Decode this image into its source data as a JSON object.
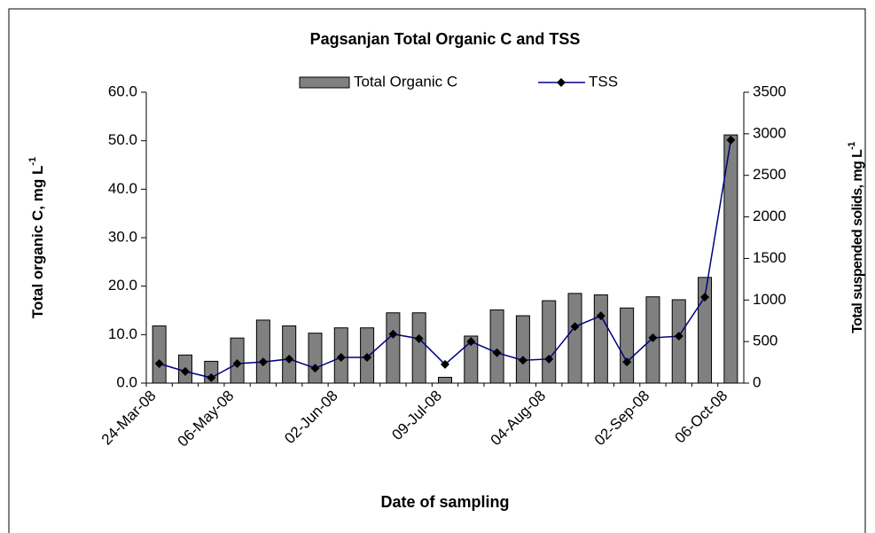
{
  "chart_data": {
    "type": "combo",
    "title": "Pagsanjan Total Organic C and TSS",
    "x_label": "Date of sampling",
    "y_label": "Total organic C, mg L",
    "y_label_sup": "-1",
    "y2_label": "Total suspended solids, mg L",
    "y2_label_sup": "-1",
    "categories": [
      "24-Mar-08",
      null,
      null,
      "06-May-08",
      null,
      null,
      null,
      "02-Jun-08",
      null,
      null,
      null,
      "09-Jul-08",
      null,
      null,
      null,
      "04-Aug-08",
      null,
      null,
      null,
      "02-Sep-08",
      null,
      null,
      "06-Oct-08"
    ],
    "series": [
      {
        "name": "Total Organic C",
        "type": "bar",
        "color": "#808080",
        "values": [
          11.8,
          5.8,
          4.5,
          9.3,
          13.0,
          11.8,
          10.3,
          11.4,
          11.4,
          14.5,
          14.5,
          1.2,
          9.7,
          15.1,
          13.9,
          17.0,
          18.5,
          18.2,
          15.5,
          17.8,
          17.2,
          21.8,
          51.2
        ]
      },
      {
        "name": "TSS",
        "type": "line",
        "color": "#000080",
        "axis": "y2",
        "values": [
          235,
          140,
          65,
          235,
          255,
          290,
          180,
          310,
          310,
          590,
          535,
          225,
          500,
          365,
          275,
          290,
          680,
          810,
          255,
          545,
          565,
          1035,
          2925
        ]
      }
    ],
    "ylim": [
      0,
      60
    ],
    "yticks": [
      {
        "value": 0,
        "label": "0.0"
      },
      {
        "value": 10,
        "label": "10.0"
      },
      {
        "value": 20,
        "label": "20.0"
      },
      {
        "value": 30,
        "label": "30.0"
      },
      {
        "value": 40,
        "label": "40.0"
      },
      {
        "value": 50,
        "label": "50.0"
      },
      {
        "value": 60,
        "label": "60.0"
      }
    ],
    "y2lim": [
      0,
      3500
    ],
    "y2ticks": [
      0,
      500,
      1000,
      1500,
      2000,
      2500,
      3000,
      3500
    ],
    "legend": "top"
  }
}
